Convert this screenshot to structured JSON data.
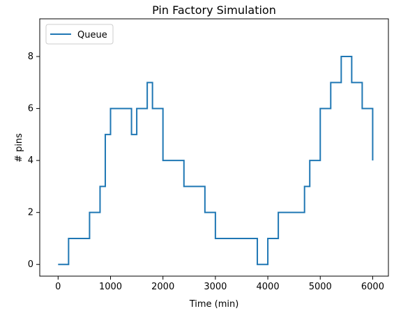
{
  "chart_data": {
    "type": "line",
    "title": "Pin Factory Simulation",
    "xlabel": "Time (min)",
    "ylabel": "# pins",
    "xlim": [
      -350,
      6300
    ],
    "ylim": [
      -0.45,
      9.45
    ],
    "x_ticks": [
      0,
      1000,
      2000,
      3000,
      4000,
      5000,
      6000
    ],
    "y_ticks": [
      0,
      2,
      4,
      6,
      8
    ],
    "grid": false,
    "legend_position": "upper-left",
    "series": [
      {
        "name": "Queue",
        "color": "#1f77b4",
        "step": true,
        "x": [
          0,
          200,
          400,
          600,
          700,
          800,
          900,
          1000,
          1200,
          1400,
          1500,
          1700,
          1800,
          2000,
          2200,
          2400,
          2600,
          2800,
          3000,
          3200,
          3400,
          3600,
          3800,
          4000,
          4200,
          4400,
          4600,
          4700,
          4800,
          5000,
          5200,
          5400,
          5600,
          5800,
          6000
        ],
        "y": [
          0,
          1,
          1,
          2,
          2,
          3,
          5,
          6,
          6,
          5,
          6,
          7,
          6,
          4,
          4,
          3,
          3,
          2,
          1,
          1,
          1,
          1,
          0,
          1,
          2,
          2,
          2,
          3,
          4,
          6,
          7,
          8,
          7,
          6,
          4
        ]
      }
    ]
  }
}
